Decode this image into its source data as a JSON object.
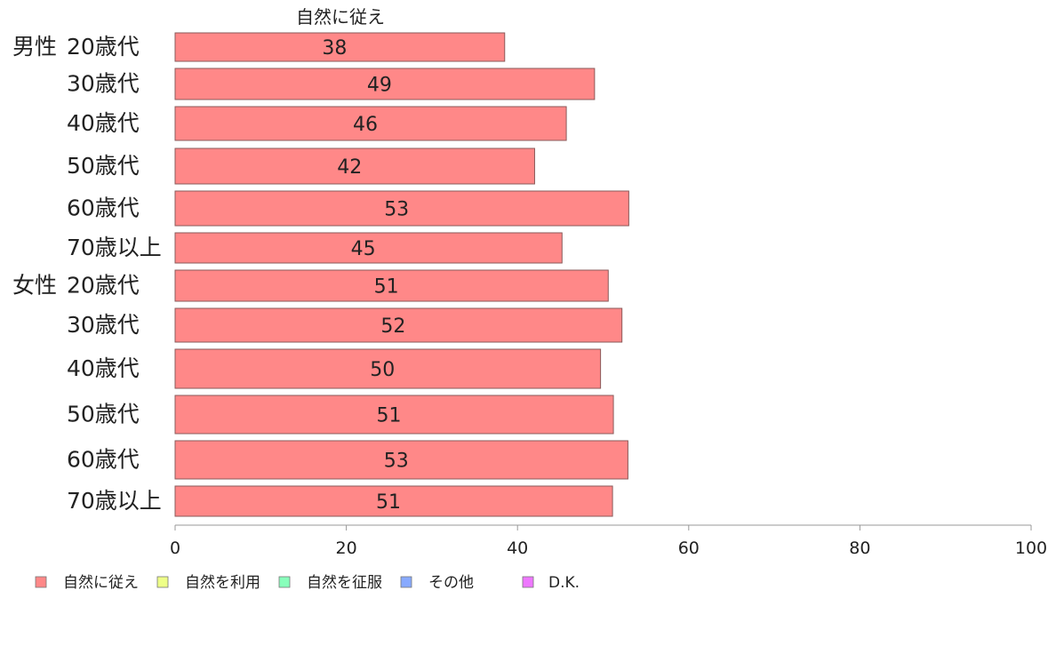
{
  "chart_data": {
    "type": "bar",
    "orientation": "horizontal",
    "series_title": "自然に従え",
    "categories": [
      {
        "group": "男性",
        "label": "20歳代"
      },
      {
        "group": "",
        "label": "30歳代"
      },
      {
        "group": "",
        "label": "40歳代"
      },
      {
        "group": "",
        "label": "50歳代"
      },
      {
        "group": "",
        "label": "60歳代"
      },
      {
        "group": "",
        "label": "70歳以上"
      },
      {
        "group": "女性",
        "label": "20歳代"
      },
      {
        "group": "",
        "label": "30歳代"
      },
      {
        "group": "",
        "label": "40歳代"
      },
      {
        "group": "",
        "label": "50歳代"
      },
      {
        "group": "",
        "label": "60歳代"
      },
      {
        "group": "",
        "label": "70歳以上"
      }
    ],
    "series": [
      {
        "name": "自然に従え",
        "color": "#ff8888",
        "values": [
          38.5,
          49,
          45.7,
          42,
          53,
          45.2,
          50.6,
          52.2,
          49.7,
          51.2,
          52.9,
          51.1
        ],
        "labels": [
          "38",
          "49",
          "46",
          "42",
          "53",
          "45",
          "51",
          "52",
          "50",
          "51",
          "53",
          "51"
        ]
      }
    ],
    "xlim": [
      0,
      100
    ],
    "xticks": [
      "0",
      "20",
      "40",
      "60",
      "80",
      "100"
    ],
    "legend": [
      {
        "label": "自然に従え",
        "color": "#ff8888"
      },
      {
        "label": "自然を利用",
        "color": "#eeff88"
      },
      {
        "label": "自然を征服",
        "color": "#88ffbb"
      },
      {
        "label": "その他",
        "color": "#88aaff"
      },
      {
        "label": "D.K.",
        "color": "#ee77ff"
      }
    ],
    "legend_position": "bottom-left",
    "grid": false
  }
}
